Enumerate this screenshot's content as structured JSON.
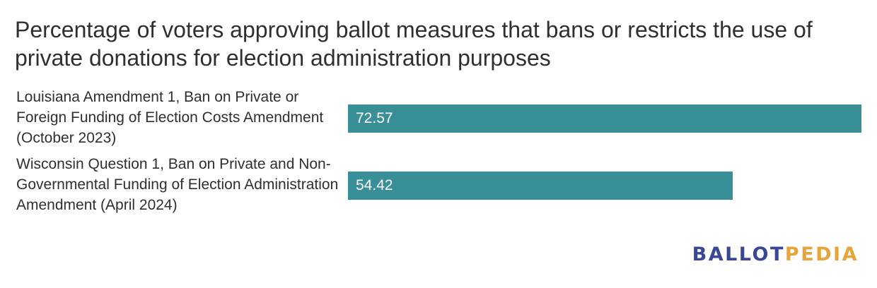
{
  "title": "Percentage of voters approving ballot measures that bans or restricts the use of private donations for election administration purposes",
  "colors": {
    "bar": "#388f98",
    "logo_primary": "#3a4797",
    "logo_accent": "#e6a43a"
  },
  "logo": {
    "part1": "BALLOT",
    "part2": "PEDIA"
  },
  "chart_data": {
    "type": "bar",
    "orientation": "horizontal",
    "title": "Percentage of voters approving ballot measures that bans or restricts the use of private donations for election administration purposes",
    "categories": [
      "Louisiana Amendment 1, Ban on Private or Foreign Funding of Election Costs Amendment (October 2023)",
      "Wisconsin Question 1, Ban on Private and Non-Governmental Funding of Election Administration Amendment (April 2024)"
    ],
    "values": [
      72.57,
      54.42
    ],
    "value_labels": [
      "72.57",
      "54.42"
    ],
    "xlim": [
      0,
      72.57
    ],
    "grid": false,
    "legend": "none"
  }
}
